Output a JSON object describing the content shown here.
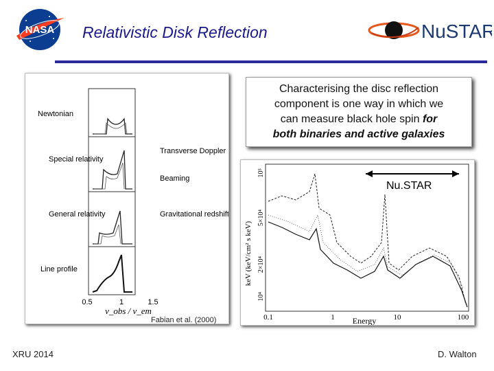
{
  "header": {
    "title": "Relativistic Disk Reflection",
    "nasa_logo_text": "NASA",
    "nustar_logo_text": "NuSTAR"
  },
  "left_figure": {
    "panel_labels": [
      "Newtonian",
      "Special relativity",
      "General relativity",
      "Line profile"
    ],
    "effect_labels": [
      "Transverse Doppler",
      "Beaming",
      "Gravitational redshift"
    ],
    "x_ticks": [
      "0.5",
      "1",
      "1.5"
    ],
    "x_label": "ν_obs / ν_em",
    "credit": "Fabian et al. (2000)"
  },
  "callout": {
    "line1": "Characterising the disc reflection",
    "line2": "component is one way in which we",
    "line3": "can measure black hole spin",
    "line3_em": "for",
    "line4_em": "both binaries and active galaxies"
  },
  "right_figure": {
    "band_label": "Nu.STAR",
    "y_label": "keV (keV/cm² s keV)",
    "y_ticks": [
      "10⁴",
      "2×10⁴",
      "5×10⁴",
      "10⁵"
    ],
    "x_ticks": [
      "0.1",
      "1",
      "10",
      "100"
    ],
    "x_label": "Energy"
  },
  "footer": {
    "left": "XRU 2014",
    "right": "D. Walton"
  },
  "colors": {
    "title": "#1a1a8c",
    "rule": "#2a2a9a",
    "nasa_blue": "#0b3d91",
    "nasa_red": "#fc3d21",
    "nustar_blue": "#1b3a73",
    "nustar_orange": "#e8581b"
  }
}
